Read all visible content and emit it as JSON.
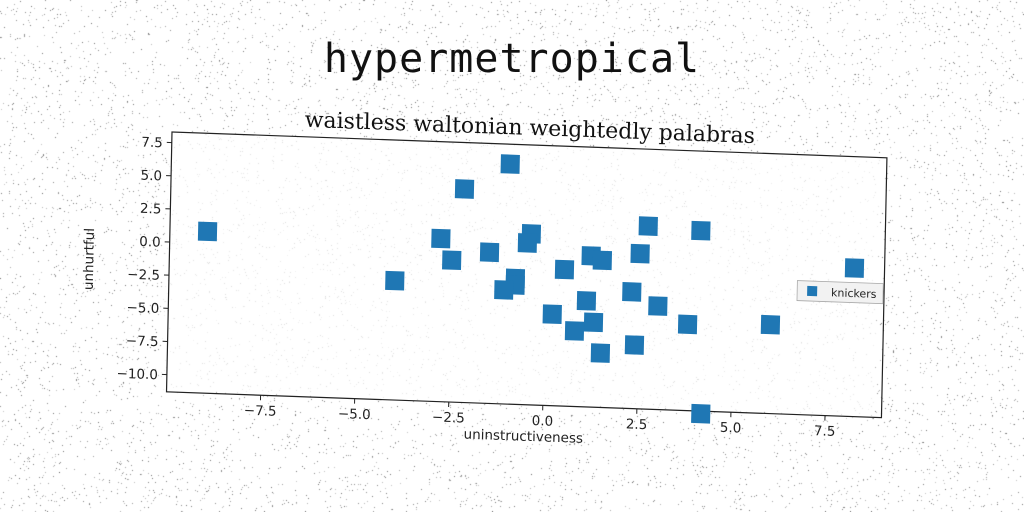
{
  "figure_title": "hypermetropical",
  "chart_data": {
    "type": "scatter",
    "title": "waistless waltonian weightedly palabras",
    "xlabel": "uninstructiveness",
    "ylabel": "unhurtful",
    "xlim": [
      -10.0,
      9.0
    ],
    "ylim": [
      -11.3,
      8.3
    ],
    "xticks": [
      {
        "value": -7.5,
        "label": "−7.5"
      },
      {
        "value": -5.0,
        "label": "−5.0"
      },
      {
        "value": -2.5,
        "label": "−2.5"
      },
      {
        "value": 0.0,
        "label": "0.0"
      },
      {
        "value": 2.5,
        "label": "2.5"
      },
      {
        "value": 5.0,
        "label": "5.0"
      },
      {
        "value": 7.5,
        "label": "7.5"
      }
    ],
    "yticks": [
      {
        "value": 7.5,
        "label": "7.5"
      },
      {
        "value": 5.0,
        "label": "5.0"
      },
      {
        "value": 2.5,
        "label": "2.5"
      },
      {
        "value": 0.0,
        "label": "0.0"
      },
      {
        "value": -2.5,
        "label": "−2.5"
      },
      {
        "value": -5.0,
        "label": "−5.0"
      },
      {
        "value": -7.5,
        "label": "−7.5"
      },
      {
        "value": -10.0,
        "label": "−10.0"
      }
    ],
    "grid": false,
    "legend_position": "center-right",
    "series": [
      {
        "name": "knickers",
        "color": "#1f77b4",
        "marker": "square",
        "points": [
          {
            "x": -9.0,
            "y": 0.9
          },
          {
            "x": -2.2,
            "y": 4.8
          },
          {
            "x": -1.0,
            "y": 6.8
          },
          {
            "x": -4.0,
            "y": -2.3
          },
          {
            "x": -2.8,
            "y": 1.0
          },
          {
            "x": -2.5,
            "y": -0.6
          },
          {
            "x": -1.5,
            "y": 0.1
          },
          {
            "x": -0.4,
            "y": 1.6
          },
          {
            "x": -0.5,
            "y": 0.9
          },
          {
            "x": -0.8,
            "y": -1.8
          },
          {
            "x": -0.8,
            "y": -2.3
          },
          {
            "x": -1.1,
            "y": -2.7
          },
          {
            "x": 0.5,
            "y": -1.0
          },
          {
            "x": 1.2,
            "y": 0.1
          },
          {
            "x": 1.5,
            "y": -0.2
          },
          {
            "x": 2.5,
            "y": 0.4
          },
          {
            "x": 2.7,
            "y": 2.5
          },
          {
            "x": 4.1,
            "y": 2.3
          },
          {
            "x": 2.3,
            "y": -2.5
          },
          {
            "x": 3.0,
            "y": -3.5
          },
          {
            "x": 1.1,
            "y": -3.3
          },
          {
            "x": 0.2,
            "y": -4.4
          },
          {
            "x": 1.3,
            "y": -4.9
          },
          {
            "x": 0.8,
            "y": -5.6
          },
          {
            "x": 3.8,
            "y": -4.8
          },
          {
            "x": 2.4,
            "y": -6.5
          },
          {
            "x": 1.5,
            "y": -7.2
          },
          {
            "x": 6.0,
            "y": -4.6
          },
          {
            "x": 8.2,
            "y": -0.1
          },
          {
            "x": 4.2,
            "y": -11.5
          }
        ]
      }
    ]
  }
}
